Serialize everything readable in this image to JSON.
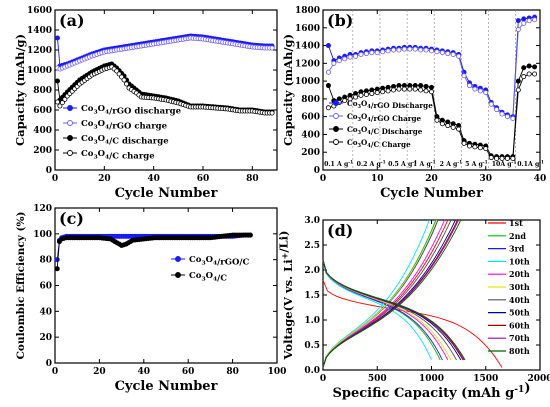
{
  "chart_data": [
    {
      "panel": "(a)",
      "type": "scatter",
      "xlabel": "Cycle Number",
      "ylabel": "Capacity (mAh/g)",
      "xlim": [
        0,
        90
      ],
      "ylim": [
        0,
        1600
      ],
      "xticks": [
        0,
        20,
        40,
        60,
        80
      ],
      "yticks": [
        0,
        200,
        400,
        600,
        800,
        1000,
        1200,
        1400,
        1600
      ],
      "legend_position": "lower-left",
      "series": [
        {
          "name": "Co3O4/rGO discharge",
          "color": "#1a1aff",
          "filled": true,
          "x": [
            1,
            2,
            5,
            10,
            15,
            20,
            25,
            30,
            35,
            40,
            45,
            50,
            55,
            60,
            65,
            70,
            75,
            80,
            85,
            88
          ],
          "y": [
            1320,
            1040,
            1060,
            1110,
            1160,
            1200,
            1220,
            1240,
            1260,
            1280,
            1300,
            1320,
            1340,
            1330,
            1310,
            1290,
            1270,
            1250,
            1240,
            1240
          ]
        },
        {
          "name": "Co3O4/rGO charge",
          "color": "#6a5aff",
          "filled": false,
          "x": [
            1,
            2,
            5,
            10,
            15,
            20,
            25,
            30,
            35,
            40,
            45,
            50,
            55,
            60,
            65,
            70,
            75,
            80,
            85,
            88
          ],
          "y": [
            1020,
            1010,
            1040,
            1090,
            1140,
            1180,
            1200,
            1220,
            1240,
            1260,
            1280,
            1300,
            1320,
            1310,
            1290,
            1270,
            1250,
            1230,
            1220,
            1220
          ]
        },
        {
          "name": "Co3O4/C discharge",
          "color": "#000000",
          "filled": true,
          "x": [
            1,
            2,
            5,
            10,
            15,
            20,
            23,
            25,
            28,
            30,
            33,
            35,
            40,
            45,
            50,
            55,
            60,
            65,
            70,
            75,
            80,
            85,
            88
          ],
          "y": [
            890,
            700,
            780,
            900,
            980,
            1040,
            1060,
            1020,
            940,
            860,
            800,
            760,
            740,
            720,
            690,
            640,
            640,
            630,
            620,
            600,
            600,
            580,
            580
          ]
        },
        {
          "name": "Co3O4/C charge",
          "color": "#000000",
          "filled": false,
          "x": [
            1,
            2,
            5,
            10,
            15,
            20,
            23,
            25,
            28,
            30,
            33,
            35,
            40,
            45,
            50,
            55,
            60,
            65,
            70,
            75,
            80,
            85,
            88
          ],
          "y": [
            680,
            640,
            740,
            860,
            950,
            1010,
            1030,
            990,
            900,
            820,
            770,
            730,
            720,
            700,
            670,
            630,
            630,
            620,
            610,
            590,
            590,
            570,
            570
          ]
        }
      ]
    },
    {
      "panel": "(b)",
      "type": "scatter",
      "xlabel": "Cycle Number",
      "ylabel": "Capacity (mAh/g)",
      "xlim": [
        0,
        40
      ],
      "ylim": [
        0,
        1800
      ],
      "xticks": [
        0,
        10,
        20,
        30,
        40
      ],
      "yticks": [
        0,
        200,
        400,
        600,
        800,
        1000,
        1200,
        1400,
        1600,
        1800
      ],
      "rate_labels": [
        "0.1 A g-1",
        "0.2 A g-1",
        "0.5 A g-1",
        "1 A g-1",
        "2 A g-1",
        "5 A g-1",
        "10A g-1",
        "0.1A g-1"
      ],
      "rate_boundaries": [
        5,
        10,
        15,
        20,
        25,
        30,
        35
      ],
      "legend_position": "lower-left",
      "series": [
        {
          "name": "Co3O4/rGO Discharge",
          "color": "#1a1aff",
          "filled": true,
          "x": [
            1,
            2,
            3,
            4,
            5,
            6,
            7,
            8,
            9,
            10,
            11,
            12,
            13,
            14,
            15,
            16,
            17,
            18,
            19,
            20,
            21,
            22,
            23,
            24,
            25,
            26,
            27,
            28,
            29,
            30,
            31,
            32,
            33,
            34,
            35,
            36,
            37,
            38,
            39
          ],
          "y": [
            1400,
            1230,
            1260,
            1280,
            1300,
            1300,
            1320,
            1330,
            1340,
            1340,
            1350,
            1360,
            1370,
            1370,
            1380,
            1380,
            1380,
            1370,
            1370,
            1360,
            1350,
            1340,
            1330,
            1320,
            1300,
            1100,
            980,
            940,
            920,
            900,
            760,
            700,
            650,
            620,
            600,
            1680,
            1700,
            1710,
            1720
          ]
        },
        {
          "name": "Co3O4/rGO Charge",
          "color": "#6a5aff",
          "filled": false,
          "x": [
            1,
            2,
            3,
            4,
            5,
            6,
            7,
            8,
            9,
            10,
            11,
            12,
            13,
            14,
            15,
            16,
            17,
            18,
            19,
            20,
            21,
            22,
            23,
            24,
            25,
            26,
            27,
            28,
            29,
            30,
            31,
            32,
            33,
            34,
            35,
            36,
            37,
            38,
            39
          ],
          "y": [
            1100,
            1200,
            1230,
            1250,
            1270,
            1280,
            1300,
            1310,
            1320,
            1320,
            1330,
            1340,
            1350,
            1350,
            1360,
            1360,
            1360,
            1350,
            1350,
            1340,
            1330,
            1320,
            1310,
            1300,
            1280,
            1060,
            950,
            910,
            890,
            870,
            740,
            680,
            630,
            600,
            580,
            1580,
            1650,
            1680,
            1690
          ]
        },
        {
          "name": "Co3O4/C Discharge",
          "color": "#000000",
          "filled": true,
          "x": [
            1,
            2,
            3,
            4,
            5,
            6,
            7,
            8,
            9,
            10,
            11,
            12,
            13,
            14,
            15,
            16,
            17,
            18,
            19,
            20,
            21,
            22,
            23,
            24,
            25,
            26,
            27,
            28,
            29,
            30,
            31,
            32,
            33,
            34,
            35,
            36,
            37,
            38,
            39
          ],
          "y": [
            950,
            780,
            800,
            820,
            840,
            860,
            880,
            890,
            900,
            910,
            920,
            930,
            940,
            950,
            950,
            950,
            950,
            950,
            940,
            930,
            600,
            560,
            540,
            520,
            500,
            330,
            300,
            290,
            280,
            270,
            160,
            150,
            150,
            150,
            150,
            1000,
            1150,
            1170,
            1160
          ]
        },
        {
          "name": "Co3O4/C Charge",
          "color": "#000000",
          "filled": false,
          "x": [
            1,
            2,
            3,
            4,
            5,
            6,
            7,
            8,
            9,
            10,
            11,
            12,
            13,
            14,
            15,
            16,
            17,
            18,
            19,
            20,
            21,
            22,
            23,
            24,
            25,
            26,
            27,
            28,
            29,
            30,
            31,
            32,
            33,
            34,
            35,
            36,
            37,
            38,
            39
          ],
          "y": [
            700,
            720,
            760,
            780,
            800,
            820,
            840,
            850,
            860,
            870,
            880,
            890,
            900,
            910,
            910,
            910,
            910,
            900,
            890,
            880,
            560,
            520,
            500,
            480,
            460,
            300,
            270,
            260,
            250,
            240,
            140,
            130,
            130,
            130,
            130,
            900,
            1050,
            1080,
            1080
          ]
        }
      ]
    },
    {
      "panel": "(c)",
      "type": "scatter",
      "xlabel": "Cycle Number",
      "ylabel": "Coulombic Efficiency (%)",
      "xlim": [
        0,
        100
      ],
      "ylim": [
        0,
        120
      ],
      "xticks": [
        0,
        20,
        40,
        60,
        80,
        100
      ],
      "yticks": [
        0,
        20,
        40,
        60,
        80,
        100,
        120
      ],
      "legend_position": "center-right",
      "series": [
        {
          "name": "Co3O4/rGO/C",
          "color": "#1a1aff",
          "filled": true,
          "x": [
            1,
            2,
            3,
            5,
            8,
            10,
            15,
            20,
            25,
            30,
            35,
            40,
            45,
            50,
            55,
            60,
            65,
            70,
            75,
            80,
            85,
            88
          ],
          "y": [
            80,
            95,
            97,
            98,
            98,
            98,
            98,
            98,
            98,
            98,
            98,
            98,
            98,
            98,
            98,
            98,
            98,
            98,
            98,
            98,
            99,
            99
          ]
        },
        {
          "name": "Co3O4/C",
          "color": "#000000",
          "filled": true,
          "x": [
            1,
            2,
            3,
            5,
            8,
            10,
            15,
            20,
            25,
            27,
            29,
            30,
            32,
            35,
            40,
            45,
            50,
            55,
            60,
            65,
            70,
            75,
            80,
            85,
            88
          ],
          "y": [
            73,
            94,
            96,
            97,
            97,
            97,
            97,
            97,
            96,
            94,
            92,
            91,
            92,
            95,
            96,
            97,
            97,
            97,
            97,
            97,
            97,
            98,
            99,
            99,
            99
          ]
        }
      ]
    },
    {
      "panel": "(d)",
      "type": "line",
      "xlabel": "Specific Capacity (mAh g-1)",
      "ylabel": "Voltage(V vs. Li+/Li)",
      "xlim": [
        0,
        2000
      ],
      "ylim": [
        0.0,
        3.0
      ],
      "xticks": [
        0,
        500,
        1000,
        1500,
        2000
      ],
      "yticks": [
        0.0,
        0.5,
        1.0,
        1.5,
        2.0,
        2.5,
        3.0
      ],
      "legend_position": "right",
      "series": [
        {
          "name": "1st",
          "color": "#ff0000",
          "discharge_end": 1650,
          "charge_end": 1150
        },
        {
          "name": "2nd",
          "color": "#00bb00",
          "discharge_end": 1080,
          "charge_end": 1040
        },
        {
          "name": "3rd",
          "color": "#1a1aff",
          "discharge_end": 1100,
          "charge_end": 1060
        },
        {
          "name": "10th",
          "color": "#00e5ff",
          "discharge_end": 1000,
          "charge_end": 980
        },
        {
          "name": "20th",
          "color": "#ff00ff",
          "discharge_end": 1150,
          "charge_end": 1120
        },
        {
          "name": "30th",
          "color": "#e6e600",
          "discharge_end": 1180,
          "charge_end": 1050
        },
        {
          "name": "40th",
          "color": "#555555",
          "discharge_end": 1230,
          "charge_end": 1180
        },
        {
          "name": "50th",
          "color": "#000099",
          "discharge_end": 1270,
          "charge_end": 1220
        },
        {
          "name": "60th",
          "color": "#8b0000",
          "discharge_end": 1290,
          "charge_end": 1240
        },
        {
          "name": "70th",
          "color": "#aa00aa",
          "discharge_end": 1300,
          "charge_end": 1250
        },
        {
          "name": "80th",
          "color": "#006400",
          "discharge_end": 1310,
          "charge_end": 1270
        }
      ]
    }
  ]
}
